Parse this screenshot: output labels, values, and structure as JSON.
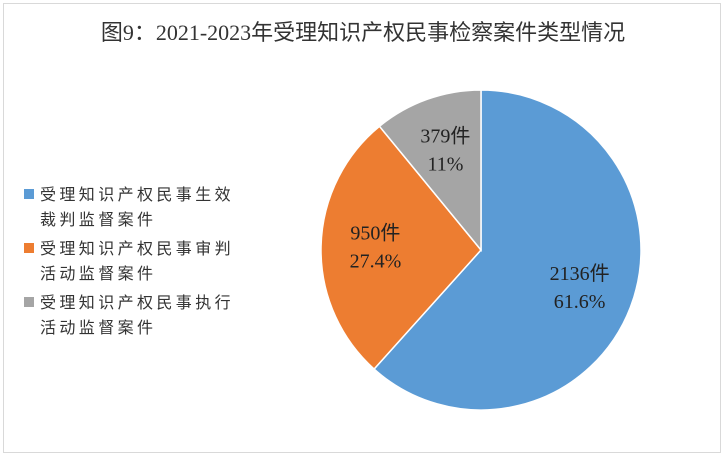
{
  "chart_data": {
    "type": "pie",
    "title": "图9：2021-2023年受理知识产权民事检察案件类型情况",
    "categories": [
      "受理知识产权民事生效裁判监督案件",
      "受理知识产权民事审判活动监督案件",
      "受理知识产权民事执行活动监督案件"
    ],
    "values": [
      2136,
      950,
      379
    ],
    "value_labels": [
      "2136件",
      "950件",
      "379件"
    ],
    "percent_labels": [
      "61.6%",
      "27.4%",
      "11%"
    ],
    "colors": [
      "#5b9bd5",
      "#ed7d31",
      "#a5a5a5"
    ],
    "legend": "left"
  }
}
